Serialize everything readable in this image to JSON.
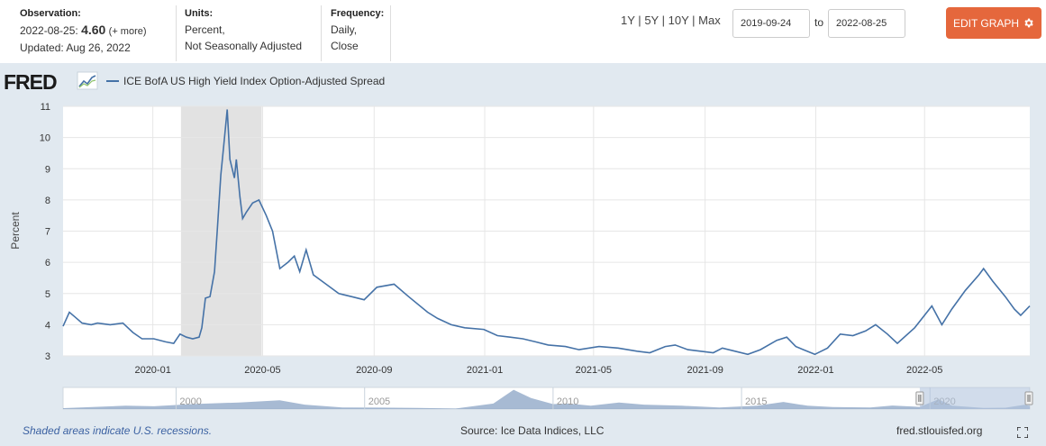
{
  "header": {
    "observation_label": "Observation:",
    "observation_date": "2022-08-25:",
    "observation_value": "4.60",
    "observation_more": "(+ more)",
    "updated": "Updated: Aug 26, 2022",
    "units_label": "Units:",
    "units_line1": "Percent,",
    "units_line2": "Not Seasonally Adjusted",
    "frequency_label": "Frequency:",
    "frequency_line1": "Daily,",
    "frequency_line2": "Close",
    "ranges": [
      "1Y",
      "5Y",
      "10Y",
      "Max"
    ],
    "range_sep": "|",
    "start_date": "2019-09-24",
    "to_label": "to",
    "end_date": "2022-08-25",
    "edit_button": "EDIT GRAPH",
    "edit_icon": "gear-icon"
  },
  "logo": {
    "text": "FRED",
    "icon": "line-chart-icon"
  },
  "footer": {
    "note": "Shaded areas indicate U.S. recessions.",
    "source": "Source: Ice Data Indices, LLC",
    "site": "fred.stlouisfed.org",
    "fullscreen_icon": "fullscreen-icon"
  },
  "colors": {
    "line": "#4572a7",
    "recession": "#e2e2e2",
    "edit_button": "#e5673c",
    "background": "#e1e9f0"
  },
  "chart_data": {
    "type": "line",
    "series": [
      {
        "name": "ICE BofA US High Yield Index Option-Adjusted Spread",
        "x": [
          "2019-09-24",
          "2019-10-01",
          "2019-10-07",
          "2019-10-15",
          "2019-10-25",
          "2019-11-01",
          "2019-11-15",
          "2019-11-29",
          "2019-12-10",
          "2019-12-20",
          "2020-01-02",
          "2020-01-15",
          "2020-01-24",
          "2020-01-31",
          "2020-02-07",
          "2020-02-14",
          "2020-02-21",
          "2020-02-24",
          "2020-02-28",
          "2020-03-04",
          "2020-03-09",
          "2020-03-12",
          "2020-03-16",
          "2020-03-19",
          "2020-03-23",
          "2020-03-26",
          "2020-03-31",
          "2020-04-02",
          "2020-04-06",
          "2020-04-09",
          "2020-04-13",
          "2020-04-20",
          "2020-04-27",
          "2020-05-05",
          "2020-05-12",
          "2020-05-20",
          "2020-05-29",
          "2020-06-05",
          "2020-06-11",
          "2020-06-18",
          "2020-06-26",
          "2020-07-10",
          "2020-07-24",
          "2020-08-07",
          "2020-08-21",
          "2020-09-04",
          "2020-09-23",
          "2020-10-09",
          "2020-10-30",
          "2020-11-10",
          "2020-11-25",
          "2020-12-10",
          "2020-12-31",
          "2021-01-15",
          "2021-01-29",
          "2021-02-12",
          "2021-02-26",
          "2021-03-12",
          "2021-03-31",
          "2021-04-15",
          "2021-05-07",
          "2021-05-28",
          "2021-06-18",
          "2021-07-02",
          "2021-07-19",
          "2021-07-30",
          "2021-08-13",
          "2021-08-27",
          "2021-09-10",
          "2021-09-20",
          "2021-10-04",
          "2021-10-18",
          "2021-11-01",
          "2021-11-19",
          "2021-11-30",
          "2021-12-10",
          "2021-12-31",
          "2022-01-14",
          "2022-01-28",
          "2022-02-11",
          "2022-02-25",
          "2022-03-08",
          "2022-03-21",
          "2022-04-01",
          "2022-04-20",
          "2022-05-09",
          "2022-05-20",
          "2022-05-31",
          "2022-06-15",
          "2022-06-30",
          "2022-07-05",
          "2022-07-15",
          "2022-07-29",
          "2022-08-08",
          "2022-08-15",
          "2022-08-25"
        ],
        "values": [
          3.95,
          4.4,
          4.25,
          4.05,
          4.0,
          4.05,
          4.0,
          4.05,
          3.75,
          3.55,
          3.55,
          3.45,
          3.4,
          3.7,
          3.6,
          3.55,
          3.6,
          3.9,
          4.85,
          4.9,
          5.7,
          7.0,
          8.8,
          9.7,
          10.9,
          9.3,
          8.7,
          9.3,
          8.1,
          7.4,
          7.6,
          7.9,
          8.0,
          7.5,
          7.0,
          5.8,
          6.0,
          6.2,
          5.7,
          6.4,
          5.6,
          5.3,
          5.0,
          4.9,
          4.8,
          5.2,
          5.3,
          4.9,
          4.4,
          4.2,
          4.0,
          3.9,
          3.85,
          3.65,
          3.6,
          3.55,
          3.45,
          3.35,
          3.3,
          3.2,
          3.3,
          3.25,
          3.15,
          3.1,
          3.3,
          3.35,
          3.2,
          3.15,
          3.1,
          3.25,
          3.15,
          3.05,
          3.2,
          3.5,
          3.6,
          3.3,
          3.05,
          3.25,
          3.7,
          3.65,
          3.8,
          4.0,
          3.7,
          3.4,
          3.9,
          4.6,
          4.0,
          4.5,
          5.1,
          5.6,
          5.8,
          5.4,
          4.9,
          4.5,
          4.3,
          4.6
        ]
      }
    ],
    "recession": {
      "start": "2020-02-01",
      "end": "2020-04-30"
    },
    "ylabel": "Percent",
    "ylim": [
      3,
      11
    ],
    "yticks": [
      "3",
      "4",
      "5",
      "6",
      "7",
      "8",
      "9",
      "10",
      "11"
    ],
    "xticks": [
      {
        "date": "2020-01-01",
        "label": "2020-01"
      },
      {
        "date": "2020-05-01",
        "label": "2020-05"
      },
      {
        "date": "2020-09-01",
        "label": "2020-09"
      },
      {
        "date": "2021-01-01",
        "label": "2021-01"
      },
      {
        "date": "2021-05-01",
        "label": "2021-05"
      },
      {
        "date": "2021-09-01",
        "label": "2021-09"
      },
      {
        "date": "2022-01-01",
        "label": "2022-01"
      },
      {
        "date": "2022-05-01",
        "label": "2022-05"
      }
    ],
    "xrange": [
      "2019-09-24",
      "2022-08-25"
    ],
    "grid": true,
    "legend": "top-left",
    "navigator": {
      "labels": [
        "2000",
        "2005",
        "2010",
        "2015",
        "2020"
      ],
      "range": [
        "1997-01-01",
        "2022-08-25"
      ],
      "label_years": [
        2000,
        2005,
        2010,
        2015,
        2020
      ],
      "selection": [
        "2019-09-24",
        "2022-08-25"
      ]
    }
  }
}
